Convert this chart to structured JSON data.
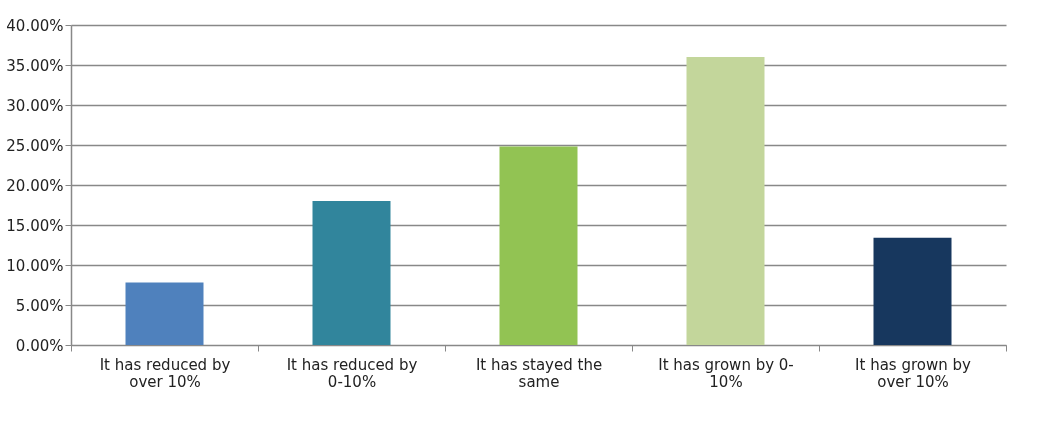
{
  "chart_data": {
    "type": "bar",
    "categories": [
      "It has reduced by over 10%",
      "It has reduced by 0-10%",
      "It has stayed the same",
      "It has grown by 0-10%",
      "It has grown by over 10%"
    ],
    "values": [
      7.8,
      18.0,
      24.8,
      36.0,
      13.4
    ],
    "colors": [
      "#4f81bd",
      "#31859c",
      "#92c353",
      "#c3d69b",
      "#17375e"
    ],
    "ylim": [
      0,
      40
    ],
    "yticks": [
      {
        "value": 0,
        "label": "0.00%"
      },
      {
        "value": 5,
        "label": "5.00%"
      },
      {
        "value": 10,
        "label": "10.00%"
      },
      {
        "value": 15,
        "label": "15.00%"
      },
      {
        "value": 20,
        "label": "20.00%"
      },
      {
        "value": 25,
        "label": "25.00%"
      },
      {
        "value": 30,
        "label": "30.00%"
      },
      {
        "value": 35,
        "label": "35.00%"
      },
      {
        "value": 40,
        "label": "40.00%"
      }
    ],
    "grid": "y",
    "legend": false
  }
}
